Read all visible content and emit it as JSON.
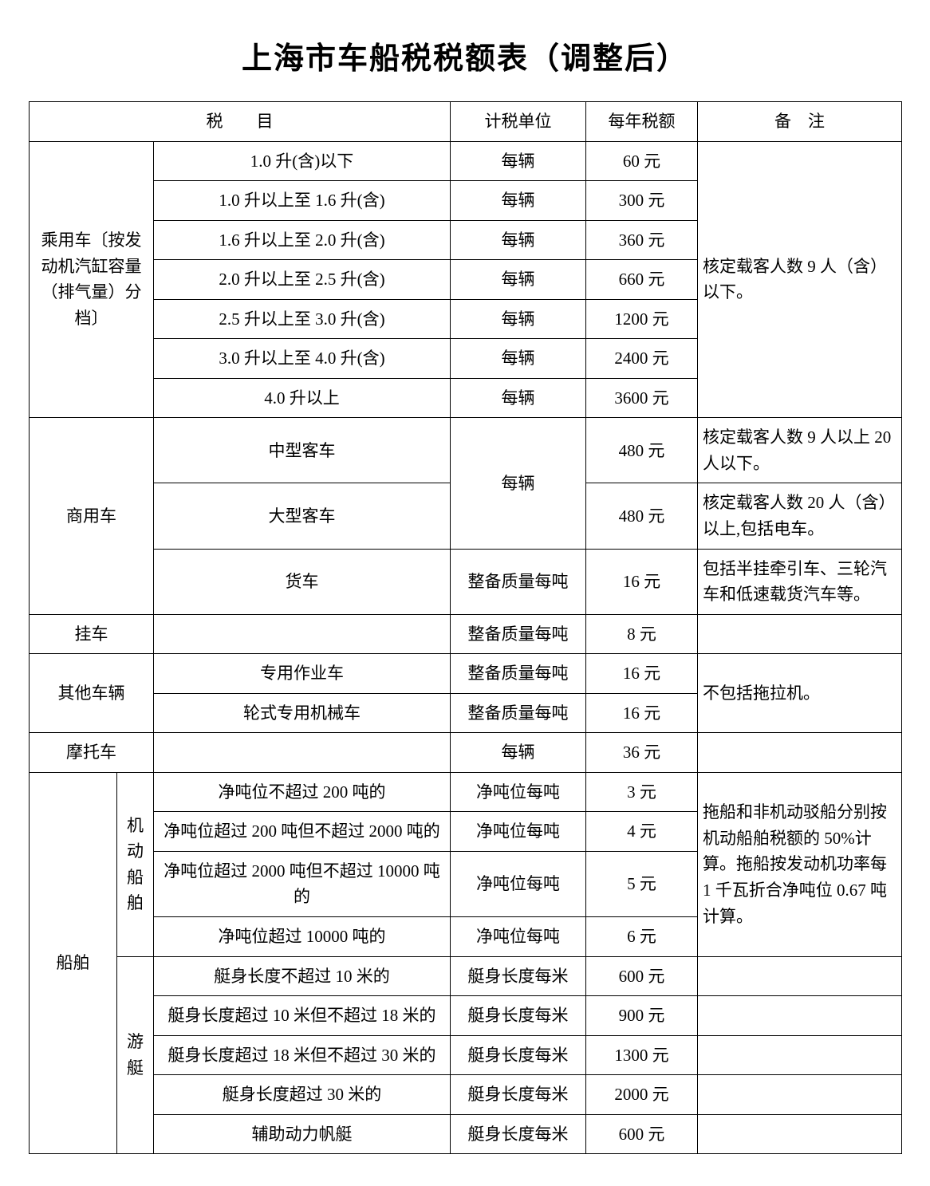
{
  "title": "上海市车船税税额表（调整后）",
  "headers": {
    "tax_item": "税　　目",
    "tax_unit": "计税单位",
    "annual_tax": "每年税额",
    "remarks": "备　注"
  },
  "groups": {
    "passenger": {
      "label": "乘用车〔按发动机汽缸容量（排气量）分档〕",
      "remark": "核定载客人数 9 人（含）以下。",
      "rows": [
        {
          "desc": "1.0 升(含)以下",
          "unit": "每辆",
          "tax": "60 元"
        },
        {
          "desc": "1.0 升以上至 1.6 升(含)",
          "unit": "每辆",
          "tax": "300 元"
        },
        {
          "desc": "1.6 升以上至 2.0 升(含)",
          "unit": "每辆",
          "tax": "360 元"
        },
        {
          "desc": "2.0 升以上至 2.5 升(含)",
          "unit": "每辆",
          "tax": "660 元"
        },
        {
          "desc": "2.5 升以上至 3.0 升(含)",
          "unit": "每辆",
          "tax": "1200 元"
        },
        {
          "desc": "3.0 升以上至 4.0 升(含)",
          "unit": "每辆",
          "tax": "2400 元"
        },
        {
          "desc": "4.0 升以上",
          "unit": "每辆",
          "tax": "3600 元"
        }
      ]
    },
    "commercial": {
      "label": "商用车",
      "unit_shared": "每辆",
      "rows": [
        {
          "desc": "中型客车",
          "tax": "480 元",
          "remark": "核定载客人数 9 人以上 20 人以下。"
        },
        {
          "desc": "大型客车",
          "tax": "480 元",
          "remark": "核定载客人数 20 人（含）以上,包括电车。"
        },
        {
          "desc": "货车",
          "unit": "整备质量每吨",
          "tax": "16 元",
          "remark": "包括半挂牵引车、三轮汽车和低速载货汽车等。"
        }
      ]
    },
    "trailer": {
      "label": "挂车",
      "rows": [
        {
          "desc": "",
          "unit": "整备质量每吨",
          "tax": "8 元",
          "remark": ""
        }
      ]
    },
    "other": {
      "label": "其他车辆",
      "remark": "不包括拖拉机。",
      "rows": [
        {
          "desc": "专用作业车",
          "unit": "整备质量每吨",
          "tax": "16 元"
        },
        {
          "desc": "轮式专用机械车",
          "unit": "整备质量每吨",
          "tax": "16 元"
        }
      ]
    },
    "motorcycle": {
      "label": "摩托车",
      "rows": [
        {
          "desc": "",
          "unit": "每辆",
          "tax": "36 元",
          "remark": ""
        }
      ]
    },
    "vessel": {
      "label": "船舶",
      "motor": {
        "label": "机动船舶",
        "remark": "拖船和非机动驳船分别按机动船舶税额的 50%计算。拖船按发动机功率每 1 千瓦折合净吨位 0.67 吨计算。",
        "rows": [
          {
            "desc": "净吨位不超过 200 吨的",
            "unit": "净吨位每吨",
            "tax": "3 元"
          },
          {
            "desc": "净吨位超过 200 吨但不超过 2000 吨的",
            "unit": "净吨位每吨",
            "tax": "4 元"
          },
          {
            "desc": "净吨位超过 2000 吨但不超过 10000 吨的",
            "unit": "净吨位每吨",
            "tax": "5 元"
          },
          {
            "desc": "净吨位超过 10000 吨的",
            "unit": "净吨位每吨",
            "tax": "6 元"
          }
        ]
      },
      "yacht": {
        "label": "游艇",
        "rows": [
          {
            "desc": "艇身长度不超过 10 米的",
            "unit": "艇身长度每米",
            "tax": "600 元",
            "remark": ""
          },
          {
            "desc": "艇身长度超过 10 米但不超过 18 米的",
            "unit": "艇身长度每米",
            "tax": "900 元",
            "remark": ""
          },
          {
            "desc": "艇身长度超过 18 米但不超过 30 米的",
            "unit": "艇身长度每米",
            "tax": "1300 元",
            "remark": ""
          },
          {
            "desc": "艇身长度超过 30 米的",
            "unit": "艇身长度每米",
            "tax": "2000 元",
            "remark": ""
          },
          {
            "desc": "辅助动力帆艇",
            "unit": "艇身长度每米",
            "tax": "600 元",
            "remark": ""
          }
        ]
      }
    }
  }
}
